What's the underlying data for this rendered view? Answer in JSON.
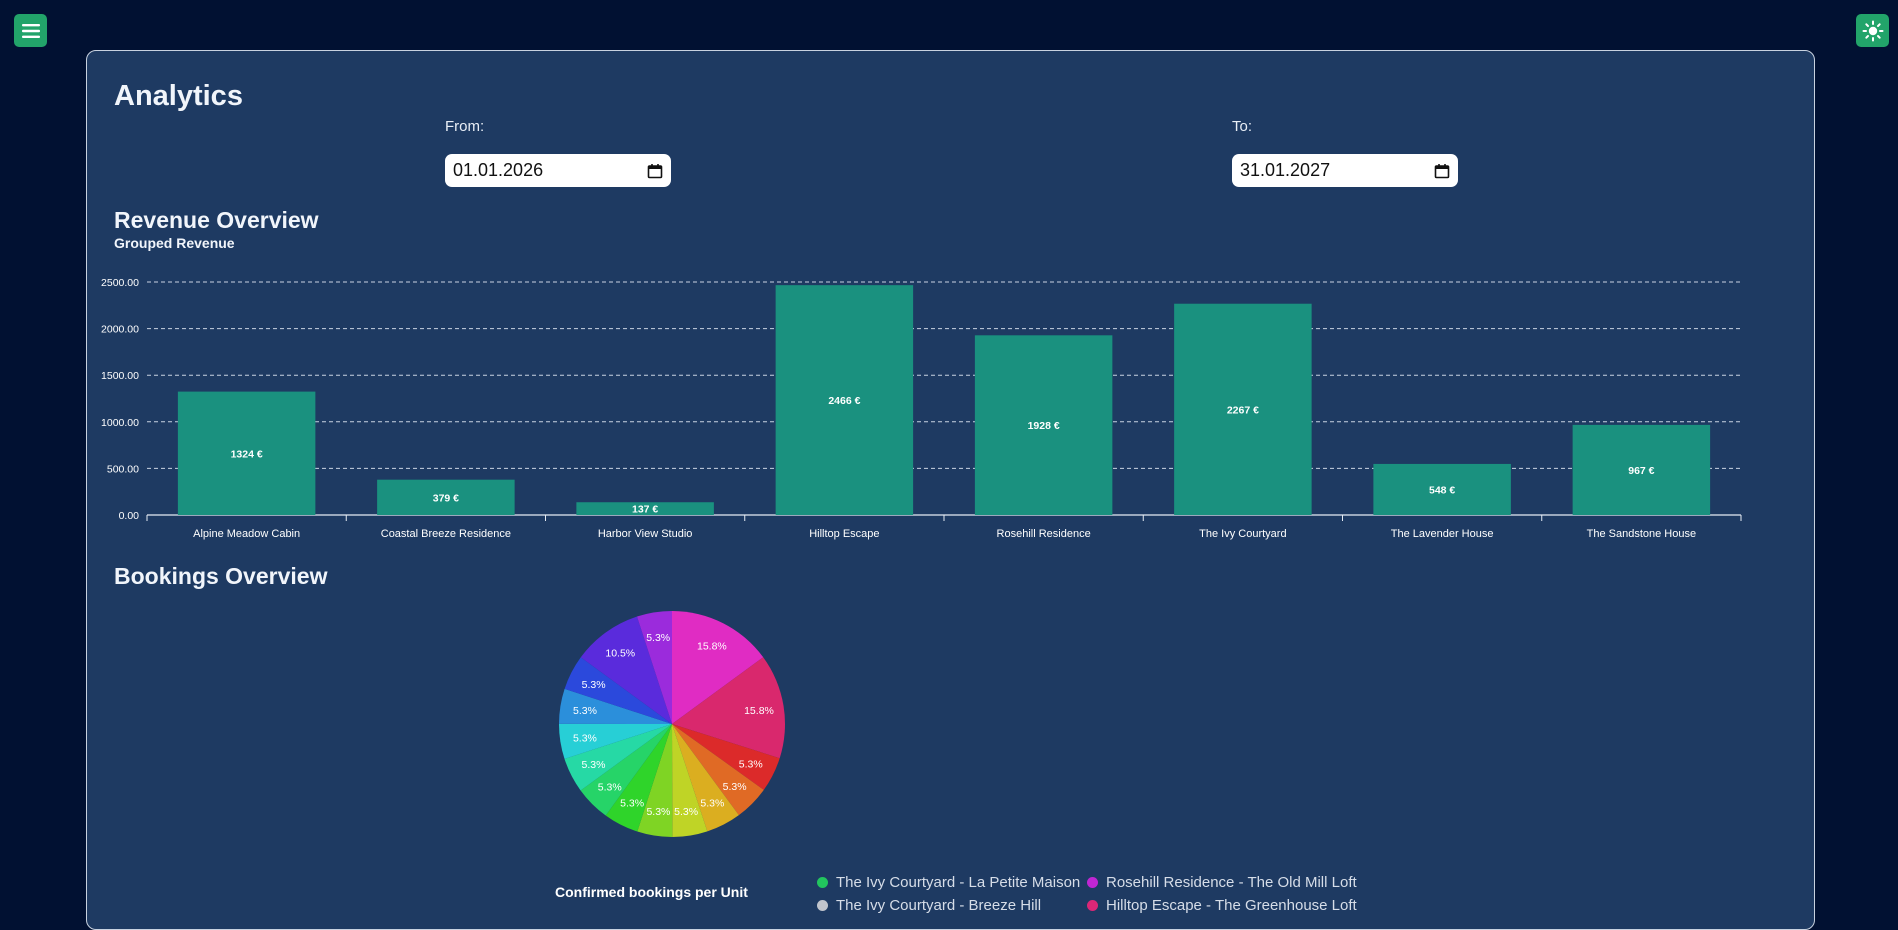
{
  "page": {
    "title": "Analytics"
  },
  "filters": {
    "from_label": "From:",
    "from_value": "01.01.2026",
    "to_label": "To:",
    "to_value": "31.01.2027"
  },
  "revenue": {
    "heading": "Revenue Overview",
    "subheading": "Grouped Revenue"
  },
  "bookings": {
    "heading": "Bookings Overview",
    "pie_title": "Confirmed bookings per Unit",
    "legend": [
      {
        "label": "The Ivy Courtyard - La Petite Maison",
        "color": "#22c55e"
      },
      {
        "label": "Rosehill Residence - The Old Mill Loft",
        "color": "#c026d3"
      },
      {
        "label": "The Ivy Courtyard - Breeze Hill",
        "color": "#c0c4cc"
      },
      {
        "label": "Hilltop Escape - The Greenhouse Loft",
        "color": "#db2777"
      }
    ]
  },
  "colors": {
    "bar": "#1a917f",
    "panel": "#1e3a62",
    "background": "#011132",
    "corner_button": "#22a46a"
  },
  "icons": {
    "menu": "hamburger-icon",
    "theme": "sun-icon",
    "calendar": "calendar-icon"
  },
  "chart_data": [
    {
      "type": "bar",
      "categories": [
        "Alpine Meadow Cabin",
        "Coastal Breeze Residence",
        "Harbor View Studio",
        "Hilltop Escape",
        "Rosehill Residence",
        "The Ivy Courtyard",
        "The Lavender House",
        "The Sandstone House"
      ],
      "values": [
        1324,
        379,
        137,
        2466,
        1928,
        2267,
        548,
        967
      ],
      "data_labels": [
        "1324 €",
        "379 €",
        "137 €",
        "2466 €",
        "1928 €",
        "2267 €",
        "548 €",
        "967 €"
      ],
      "yticks": [
        "0.00",
        "500.00",
        "1000.00",
        "1500.00",
        "2000.00",
        "2500.00"
      ],
      "ylim": [
        0,
        2500
      ],
      "grid": true
    },
    {
      "type": "pie",
      "values": [
        15.8,
        15.8,
        5.3,
        5.3,
        5.3,
        5.3,
        5.3,
        5.3,
        5.3,
        5.3,
        5.3,
        5.3,
        5.3,
        10.5,
        5.3
      ],
      "labels": [
        "15.8%",
        "15.8%",
        "5.3%",
        "5.3%",
        "5.3%",
        "5.3%",
        "5.3%",
        "5.3%",
        "5.3%",
        "5.3%",
        "5.3%",
        "5.3%",
        "5.3%",
        "10.5%",
        "5.3%"
      ],
      "colors": [
        "#e02cc3",
        "#d9286d",
        "#dc2a2a",
        "#e06a25",
        "#dbae20",
        "#bfd426",
        "#7fd424",
        "#2fd42a",
        "#26d468",
        "#26d9a5",
        "#27cfd6",
        "#2b8fdb",
        "#2b49dc",
        "#5a2bdc",
        "#9b2bdc"
      ]
    }
  ]
}
